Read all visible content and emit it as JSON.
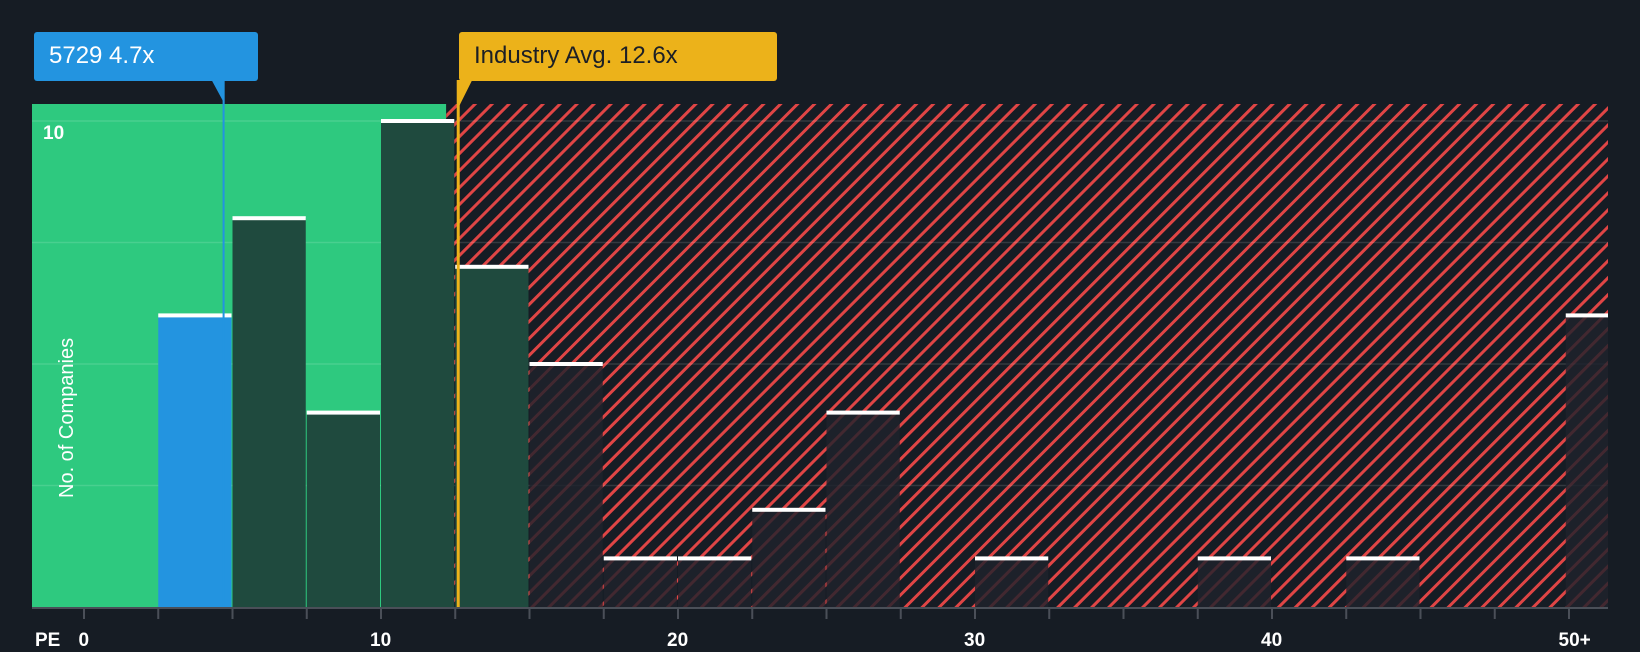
{
  "callouts": {
    "company": {
      "label": "5729 4.7x",
      "value": 4.7,
      "color": "#2394e0"
    },
    "industry": {
      "label": "Industry Avg. 12.6x",
      "value": 12.6,
      "color": "#ecb21a"
    }
  },
  "axis": {
    "x_title": "PE",
    "y_title": "No. of Companies",
    "y_tick_label": "10",
    "x_tick_labels": [
      "0",
      "10",
      "20",
      "30",
      "40",
      "50+"
    ]
  },
  "colors": {
    "background": "#161c24",
    "undervalued_zone": "#2ec97f",
    "company_bar": "#2394e0",
    "peer_bar_in_zone": "#1f4a3e",
    "hatch": "#e04545",
    "bar_cap": "#ffffff"
  },
  "chart_data": {
    "type": "bar",
    "title": "",
    "xlabel": "PE",
    "ylabel": "No. of Companies",
    "bin_width": 2.5,
    "categories": [
      "2.5-5",
      "5-7.5",
      "7.5-10",
      "10-12.5",
      "12.5-15",
      "15-17.5",
      "17.5-20",
      "20-22.5",
      "22.5-25",
      "25-27.5",
      "27.5-30",
      "30-32.5",
      "32.5-35",
      "35-37.5",
      "37.5-40",
      "40-42.5",
      "42.5-45",
      "45-47.5",
      "47.5-50",
      "50+"
    ],
    "values": [
      6,
      8,
      4,
      10,
      7,
      5,
      1,
      1,
      2,
      4,
      0,
      1,
      0,
      0,
      1,
      0,
      1,
      0,
      0,
      6
    ],
    "highlight_bin": "2.5-5",
    "company_pe": 4.7,
    "industry_avg_pe": 12.6,
    "x_ticks": [
      0,
      10,
      20,
      30,
      40,
      "50+"
    ],
    "ylim": [
      0,
      10.4
    ],
    "y_gridlines": [
      2.5,
      5,
      7.5,
      10
    ],
    "grid": true,
    "legend": "none"
  }
}
